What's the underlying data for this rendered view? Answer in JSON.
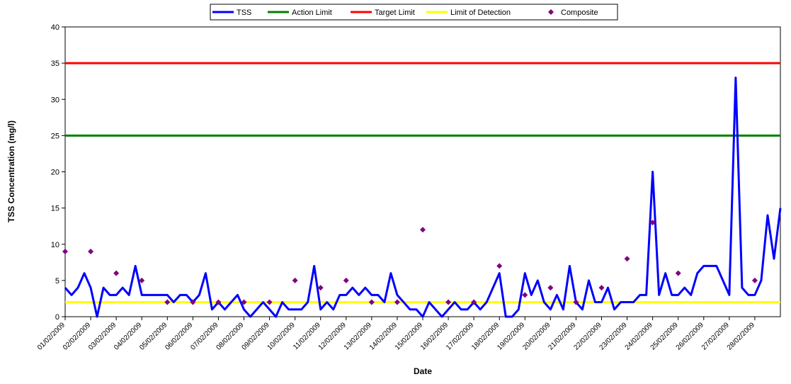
{
  "chart_data": {
    "type": "line",
    "ylabel": "TSS Concentration (mg/l)",
    "xlabel": "Date",
    "ylim": [
      0,
      40
    ],
    "yticks": [
      0,
      5,
      10,
      15,
      20,
      25,
      30,
      35,
      40
    ],
    "categories": [
      "01/02/2009",
      null,
      null,
      null,
      "02/02/2009",
      null,
      null,
      null,
      "03/02/2009",
      null,
      null,
      null,
      "04/02/2009",
      null,
      null,
      null,
      "05/02/2009",
      null,
      null,
      null,
      "06/02/2009",
      null,
      null,
      null,
      "07/02/2009",
      null,
      null,
      null,
      "08/02/2009",
      null,
      null,
      null,
      "09/02/2009",
      null,
      null,
      null,
      "10/02/2009",
      null,
      null,
      null,
      "11/02/2009",
      null,
      null,
      null,
      "12/02/2009",
      null,
      null,
      null,
      "13/02/2009",
      null,
      null,
      null,
      "14/02/2009",
      null,
      null,
      null,
      "15/02/2009",
      null,
      null,
      null,
      "16/02/2009",
      null,
      null,
      null,
      "17/02/2009",
      null,
      null,
      null,
      "18/02/2009",
      null,
      null,
      null,
      "19/02/2009",
      null,
      null,
      null,
      "20/02/2009",
      null,
      null,
      null,
      "21/02/2009",
      null,
      null,
      null,
      "22/02/2009",
      null,
      null,
      null,
      "23/02/2009",
      null,
      null,
      null,
      "24/02/2009",
      null,
      null,
      null,
      "25/02/2009",
      null,
      null,
      null,
      "26/02/2009",
      null,
      null,
      null,
      "27/02/2009",
      null,
      null,
      null,
      "28/02/2009",
      null,
      null,
      null,
      null
    ],
    "series": [
      {
        "name": "TSS",
        "color": "#0000ff",
        "style": "line",
        "values": [
          4,
          3,
          4,
          6,
          4,
          0,
          4,
          3,
          3,
          4,
          3,
          7,
          3,
          3,
          3,
          3,
          3,
          2,
          3,
          3,
          2,
          3,
          6,
          1,
          2,
          1,
          2,
          3,
          1,
          0,
          1,
          2,
          1,
          0,
          2,
          1,
          1,
          1,
          2,
          7,
          1,
          2,
          1,
          3,
          3,
          4,
          3,
          4,
          3,
          3,
          2,
          6,
          3,
          2,
          1,
          1,
          0,
          2,
          1,
          0,
          1,
          2,
          1,
          1,
          2,
          1,
          2,
          4,
          6,
          0,
          0,
          1,
          6,
          3,
          5,
          2,
          1,
          3,
          1,
          7,
          2,
          1,
          5,
          2,
          2,
          4,
          1,
          2,
          2,
          2,
          3,
          3,
          20,
          3,
          6,
          3,
          3,
          4,
          3,
          6,
          7,
          7,
          7,
          5,
          3,
          33,
          4,
          3,
          3,
          5,
          14,
          8,
          15
        ]
      },
      {
        "name": "Action Limit",
        "color": "#008000",
        "style": "hline",
        "value": 25
      },
      {
        "name": "Target Limit",
        "color": "#ff0000",
        "style": "hline",
        "value": 35
      },
      {
        "name": "Limit of Detection",
        "color": "#ffff00",
        "style": "hline",
        "value": 2
      },
      {
        "name": "Composite",
        "color": "#800080",
        "style": "marker",
        "values": [
          9,
          null,
          null,
          null,
          9,
          null,
          null,
          null,
          6,
          null,
          null,
          null,
          5,
          null,
          null,
          null,
          2,
          null,
          null,
          null,
          2,
          null,
          null,
          null,
          2,
          null,
          null,
          null,
          2,
          null,
          null,
          null,
          2,
          null,
          null,
          null,
          5,
          null,
          null,
          null,
          4,
          null,
          null,
          null,
          5,
          null,
          null,
          null,
          2,
          null,
          null,
          null,
          2,
          null,
          null,
          null,
          12,
          null,
          null,
          null,
          2,
          null,
          null,
          null,
          2,
          null,
          null,
          null,
          7,
          null,
          null,
          null,
          3,
          null,
          null,
          null,
          4,
          null,
          null,
          null,
          2,
          null,
          null,
          null,
          4,
          null,
          null,
          null,
          8,
          null,
          null,
          null,
          13,
          null,
          null,
          null,
          6,
          null,
          null,
          null,
          null,
          null,
          null,
          null,
          null,
          null,
          null,
          null,
          5,
          null,
          null,
          null,
          null
        ]
      }
    ]
  }
}
